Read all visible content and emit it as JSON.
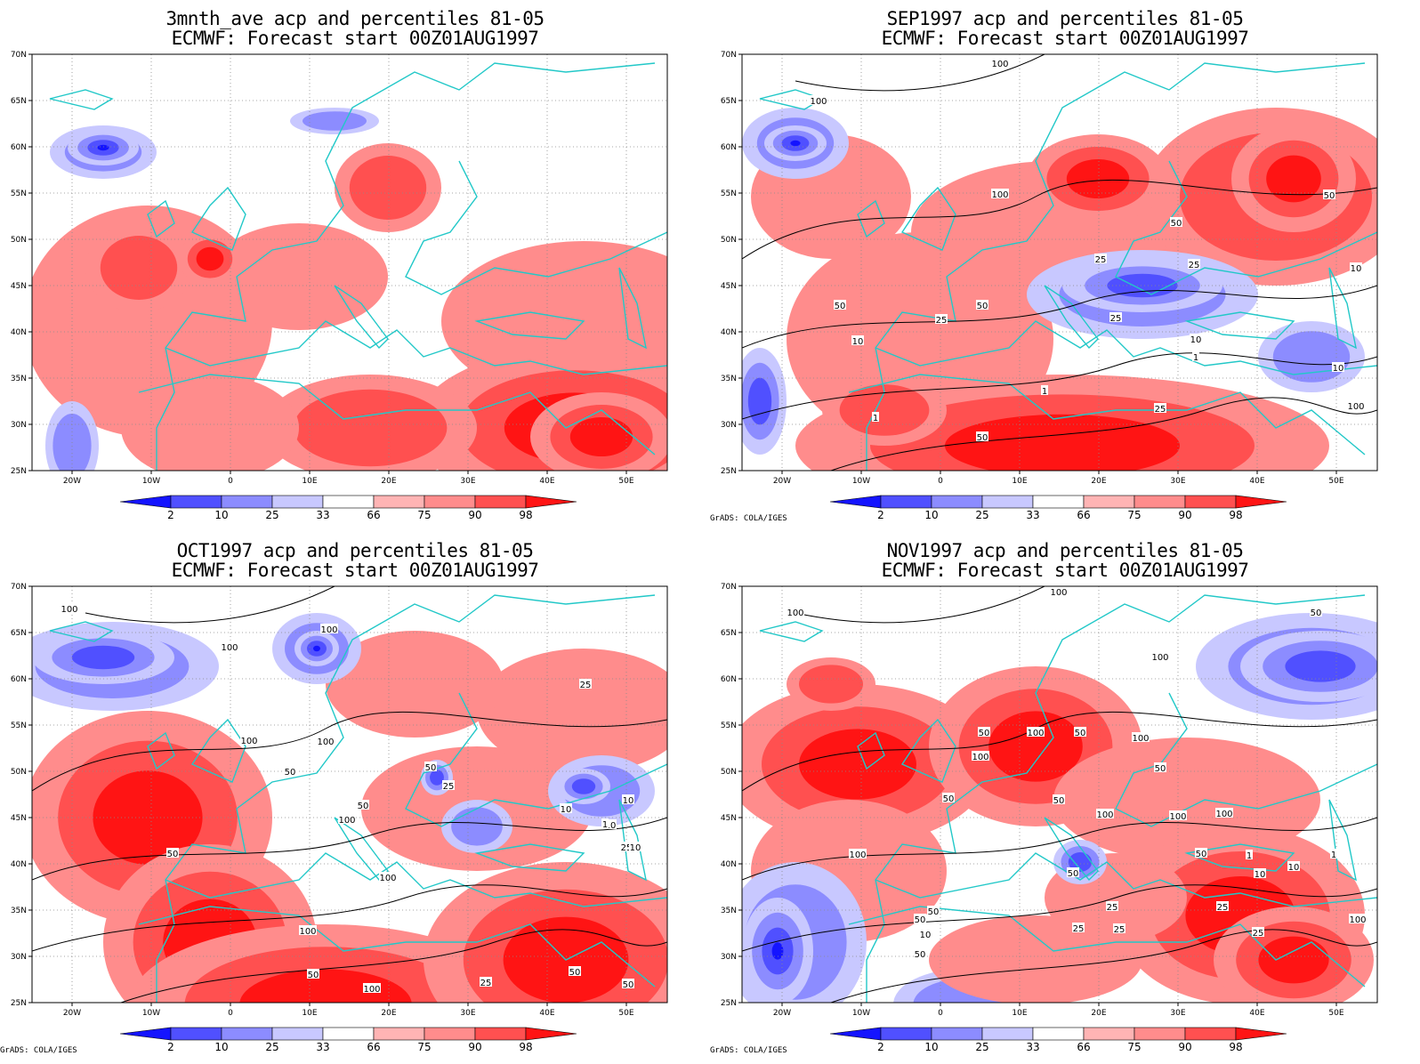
{
  "panels": [
    {
      "title": "3mnth_ave acp and percentiles 81-05",
      "subtitle": "ECMWF: Forecast start 00Z01AUG1997",
      "credit": ""
    },
    {
      "title": "SEP1997 acp and percentiles 81-05",
      "subtitle": "ECMWF: Forecast start 00Z01AUG1997",
      "credit": "GrADS: COLA/IGES"
    },
    {
      "title": "OCT1997 acp and percentiles 81-05",
      "subtitle": "ECMWF: Forecast start 00Z01AUG1997",
      "credit": "GrADS: COLA/IGES"
    },
    {
      "title": "NOV1997 acp and percentiles 81-05",
      "subtitle": "ECMWF: Forecast start 00Z01AUG1997",
      "credit": "GrADS: COLA/IGES"
    }
  ],
  "axes": {
    "lat_labels": [
      "70N",
      "65N",
      "60N",
      "55N",
      "50N",
      "45N",
      "40N",
      "35N",
      "30N",
      "25N"
    ],
    "lon_labels": [
      "20W",
      "10W",
      "0",
      "10E",
      "20E",
      "30E",
      "40E",
      "50E"
    ]
  },
  "colorbar": {
    "labels": [
      "2",
      "10",
      "25",
      "33",
      "66",
      "75",
      "90",
      "98"
    ],
    "colors": [
      "#1414ff",
      "#5050ff",
      "#8c8cff",
      "#c8c8ff",
      "#ffffff",
      "#ffb4b4",
      "#ff8c8c",
      "#ff5050",
      "#ff1414"
    ]
  },
  "contour_labels": {
    "p1": [
      "100",
      "100",
      "100",
      "50",
      "50",
      "25",
      "25",
      "50",
      "50",
      "25",
      "25",
      "10",
      "10",
      "10",
      "10",
      "1",
      "1",
      "1",
      "25",
      "50",
      "100"
    ],
    "p2": [
      "100",
      "100",
      "100",
      "100",
      "100",
      "50",
      "50",
      "50",
      "100",
      "100",
      "100",
      "50",
      "50",
      "25",
      "25",
      "10",
      "10",
      "10",
      "1",
      "25",
      "10",
      "50",
      "100",
      "50",
      "25"
    ],
    "p3": [
      "100",
      "100",
      "100",
      "50",
      "50",
      "50",
      "100",
      "100",
      "100",
      "50",
      "50",
      "50",
      "100",
      "100",
      "100",
      "100",
      "50",
      "50",
      "50",
      "25",
      "25",
      "10",
      "10",
      "1",
      "1",
      "100",
      "50",
      "25",
      "25",
      "25",
      "10",
      "50"
    ]
  }
}
